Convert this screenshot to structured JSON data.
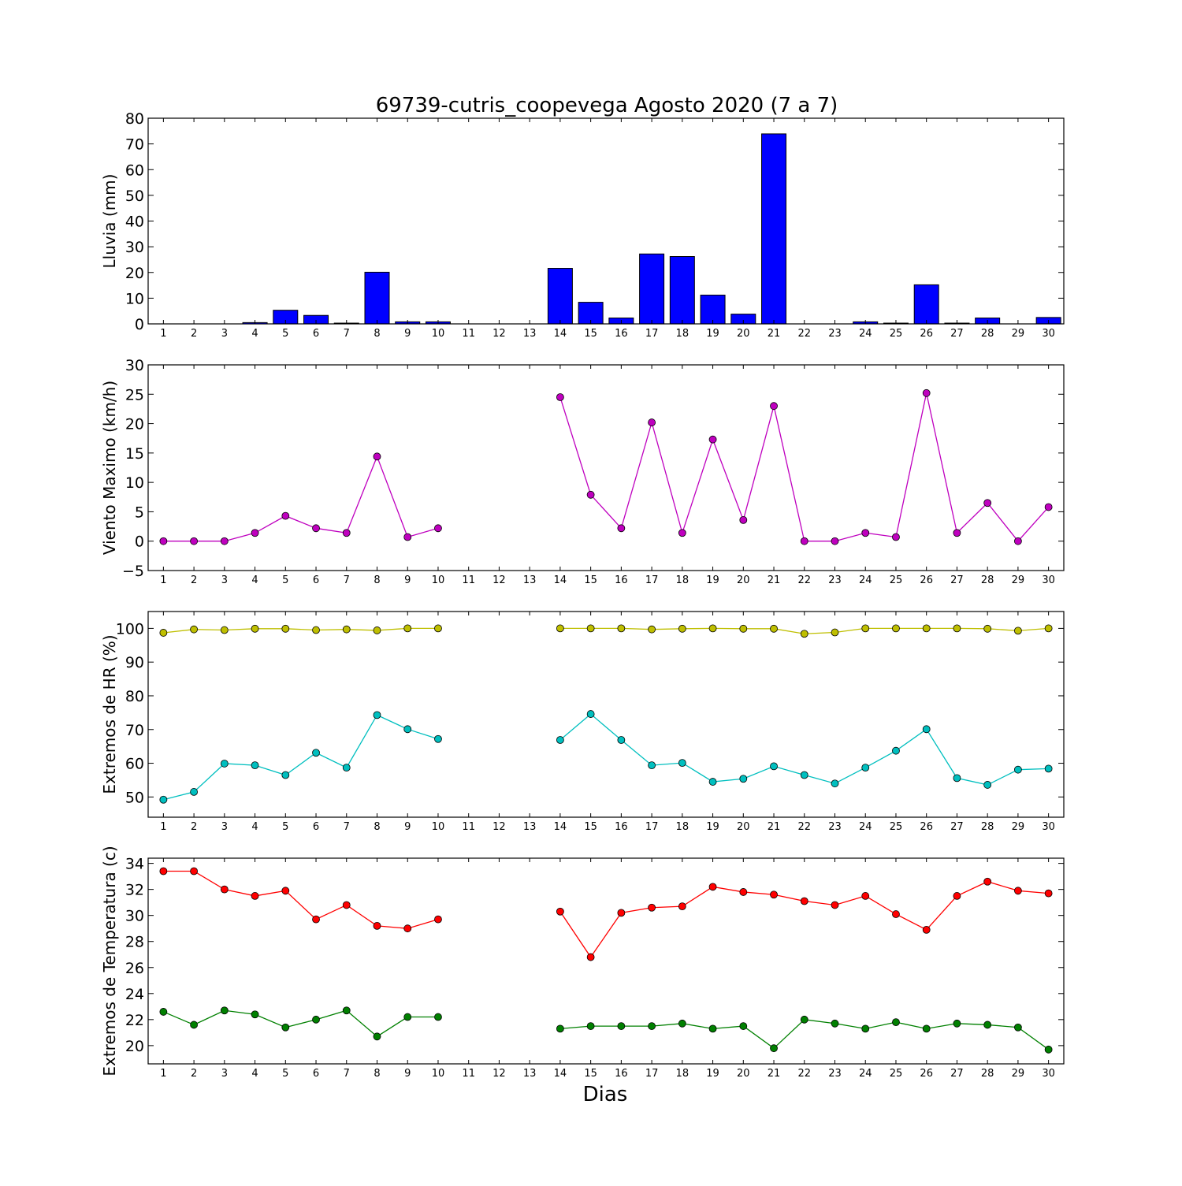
{
  "chart_data": {
    "title": "69739-cutris_coopevega Agosto 2020  (7 a 7)",
    "xlabel": "Dias",
    "days": [
      1,
      2,
      3,
      4,
      5,
      6,
      7,
      8,
      9,
      10,
      11,
      12,
      13,
      14,
      15,
      16,
      17,
      18,
      19,
      20,
      21,
      22,
      23,
      24,
      25,
      26,
      27,
      28,
      29,
      30
    ],
    "panels": [
      {
        "type": "bar",
        "ylabel": "Lluvia (mm)",
        "ylim": [
          0,
          80
        ],
        "yticks": [
          0,
          10,
          20,
          30,
          40,
          50,
          60,
          70,
          80
        ],
        "ytick_labels": [
          "0",
          "10",
          "20",
          "30",
          "40",
          "50",
          "60",
          "70",
          "80"
        ],
        "series": [
          {
            "color": "#0000ff",
            "values": [
              0,
              0,
              0,
              0.5,
              5.3,
              3.3,
              0.3,
              20.1,
              0.8,
              0.8,
              0,
              0,
              0,
              21.6,
              8.4,
              2.3,
              27.2,
              26.2,
              11.2,
              3.8,
              73.9,
              0,
              0,
              0.8,
              0.3,
              15.2,
              0.3,
              2.3,
              0,
              2.5
            ]
          }
        ]
      },
      {
        "type": "line",
        "ylabel": "Viento Maximo (km/h)",
        "ylim": [
          -5,
          30
        ],
        "yticks": [
          -5,
          0,
          5,
          10,
          15,
          20,
          25,
          30
        ],
        "ytick_labels": [
          "−5",
          "0",
          "5",
          "10",
          "15",
          "20",
          "25",
          "30"
        ],
        "series": [
          {
            "color": "#bf00bf",
            "values": [
              0,
              0,
              0,
              1.4,
              4.3,
              2.2,
              1.4,
              14.4,
              0.7,
              2.2,
              null,
              null,
              null,
              24.5,
              7.9,
              2.2,
              20.2,
              1.4,
              17.3,
              3.6,
              23.0,
              0,
              0,
              1.4,
              0.7,
              25.2,
              1.4,
              6.5,
              0,
              5.8
            ]
          }
        ]
      },
      {
        "type": "line",
        "ylabel": "Extremos de HR (%)",
        "ylim": [
          44,
          105
        ],
        "yticks": [
          50,
          60,
          70,
          80,
          90,
          100
        ],
        "ytick_labels": [
          "50",
          "60",
          "70",
          "80",
          "90",
          "100"
        ],
        "series": [
          {
            "color": "#bfbf00",
            "values": [
              98.7,
              99.7,
              99.5,
              99.9,
              99.9,
              99.5,
              99.7,
              99.4,
              100,
              100,
              null,
              null,
              null,
              100,
              100,
              100,
              99.7,
              99.9,
              100,
              99.9,
              99.9,
              98.4,
              98.8,
              100,
              100,
              100,
              100,
              99.9,
              99.3,
              100
            ]
          },
          {
            "color": "#00bfbf",
            "values": [
              49.2,
              51.5,
              59.9,
              59.4,
              56.5,
              63.1,
              58.7,
              74.3,
              70.1,
              67.2,
              null,
              null,
              null,
              66.9,
              74.6,
              66.9,
              59.4,
              60.1,
              54.5,
              55.4,
              59.1,
              56.5,
              54.0,
              58.7,
              63.7,
              70.1,
              55.6,
              53.6,
              58.1,
              58.4
            ]
          }
        ]
      },
      {
        "type": "line",
        "ylabel": "Extremos de Temperatura (c)",
        "ylim": [
          18.6,
          34.4
        ],
        "yticks": [
          20,
          22,
          24,
          26,
          28,
          30,
          32,
          34
        ],
        "ytick_labels": [
          "20",
          "22",
          "24",
          "26",
          "28",
          "30",
          "32",
          "34"
        ],
        "series": [
          {
            "color": "#ff0000",
            "values": [
              33.4,
              33.4,
              32.0,
              31.5,
              31.9,
              29.7,
              30.8,
              29.2,
              29.0,
              29.7,
              null,
              null,
              null,
              30.3,
              26.8,
              30.2,
              30.6,
              30.7,
              32.2,
              31.8,
              31.6,
              31.1,
              30.8,
              31.5,
              30.1,
              28.9,
              31.5,
              32.6,
              31.9,
              31.7
            ]
          },
          {
            "color": "#008000",
            "values": [
              22.6,
              21.6,
              22.7,
              22.4,
              21.4,
              22.0,
              22.7,
              20.7,
              22.2,
              22.2,
              null,
              null,
              null,
              21.3,
              21.5,
              21.5,
              21.5,
              21.7,
              21.3,
              21.5,
              19.8,
              22.0,
              21.7,
              21.3,
              21.8,
              21.3,
              21.7,
              21.6,
              21.4,
              19.7
            ]
          }
        ]
      }
    ]
  }
}
